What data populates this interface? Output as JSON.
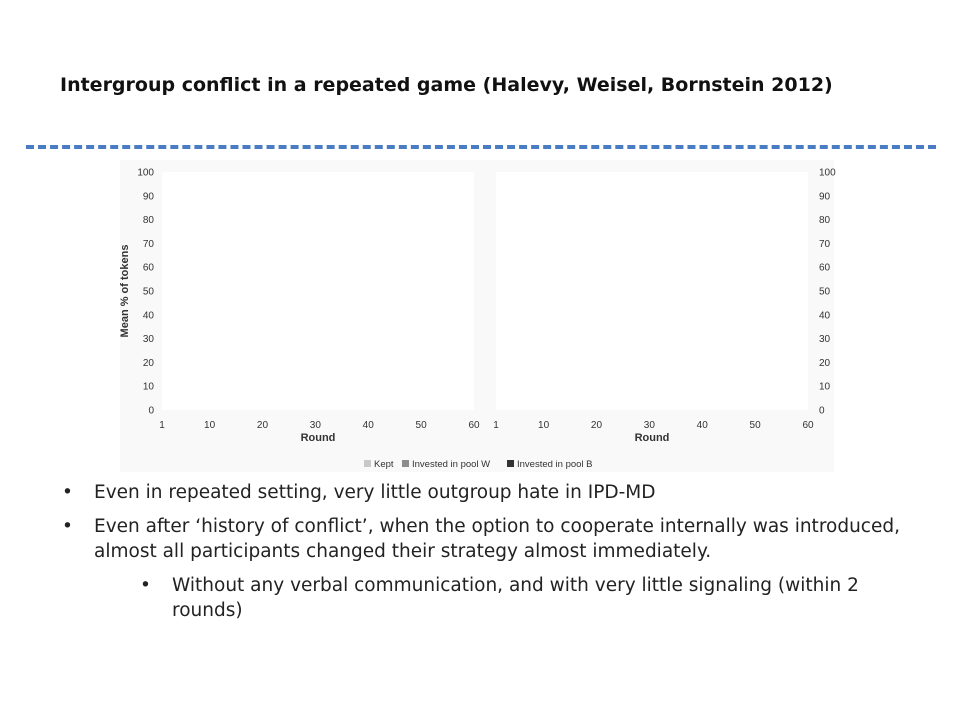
{
  "title": "Intergroup conflict in a repeated game (Halevy, Weisel, Bornstein 2012)",
  "bullets": [
    "Even in repeated setting, very little outgroup hate in IPD-MD",
    "Even after ‘history of conflict’, when the option to cooperate internally was introduced, almost all participants changed their strategy almost immediately.",
    "Without any verbal communication, and with very little signaling (within 2 rounds)"
  ],
  "colors": {
    "divider": "#4a7cc3"
  },
  "chart_data": {
    "type": "area",
    "ylabel": "Mean % of tokens",
    "ylim": [
      0,
      100
    ],
    "yticks": [
      "0",
      "10",
      "20",
      "30",
      "40",
      "50",
      "60",
      "70",
      "80",
      "90",
      "100"
    ],
    "legend_position": "bottom",
    "legend": [
      {
        "name": "Kept",
        "color": "#c8c8c8"
      },
      {
        "name": "Invested in pool W",
        "color": "#8c8c8c"
      },
      {
        "name": "Invested in pool B",
        "color": "#333333"
      }
    ],
    "panels": [
      {
        "xlabel": "Round",
        "xticks": [
          "1",
          "10",
          "20",
          "30",
          "40",
          "50",
          "60"
        ],
        "xlim": [
          1,
          60
        ]
      },
      {
        "xlabel": "Round",
        "xticks": [
          "1",
          "10",
          "20",
          "30",
          "40",
          "50",
          "60"
        ],
        "xlim": [
          1,
          60
        ]
      }
    ]
  }
}
